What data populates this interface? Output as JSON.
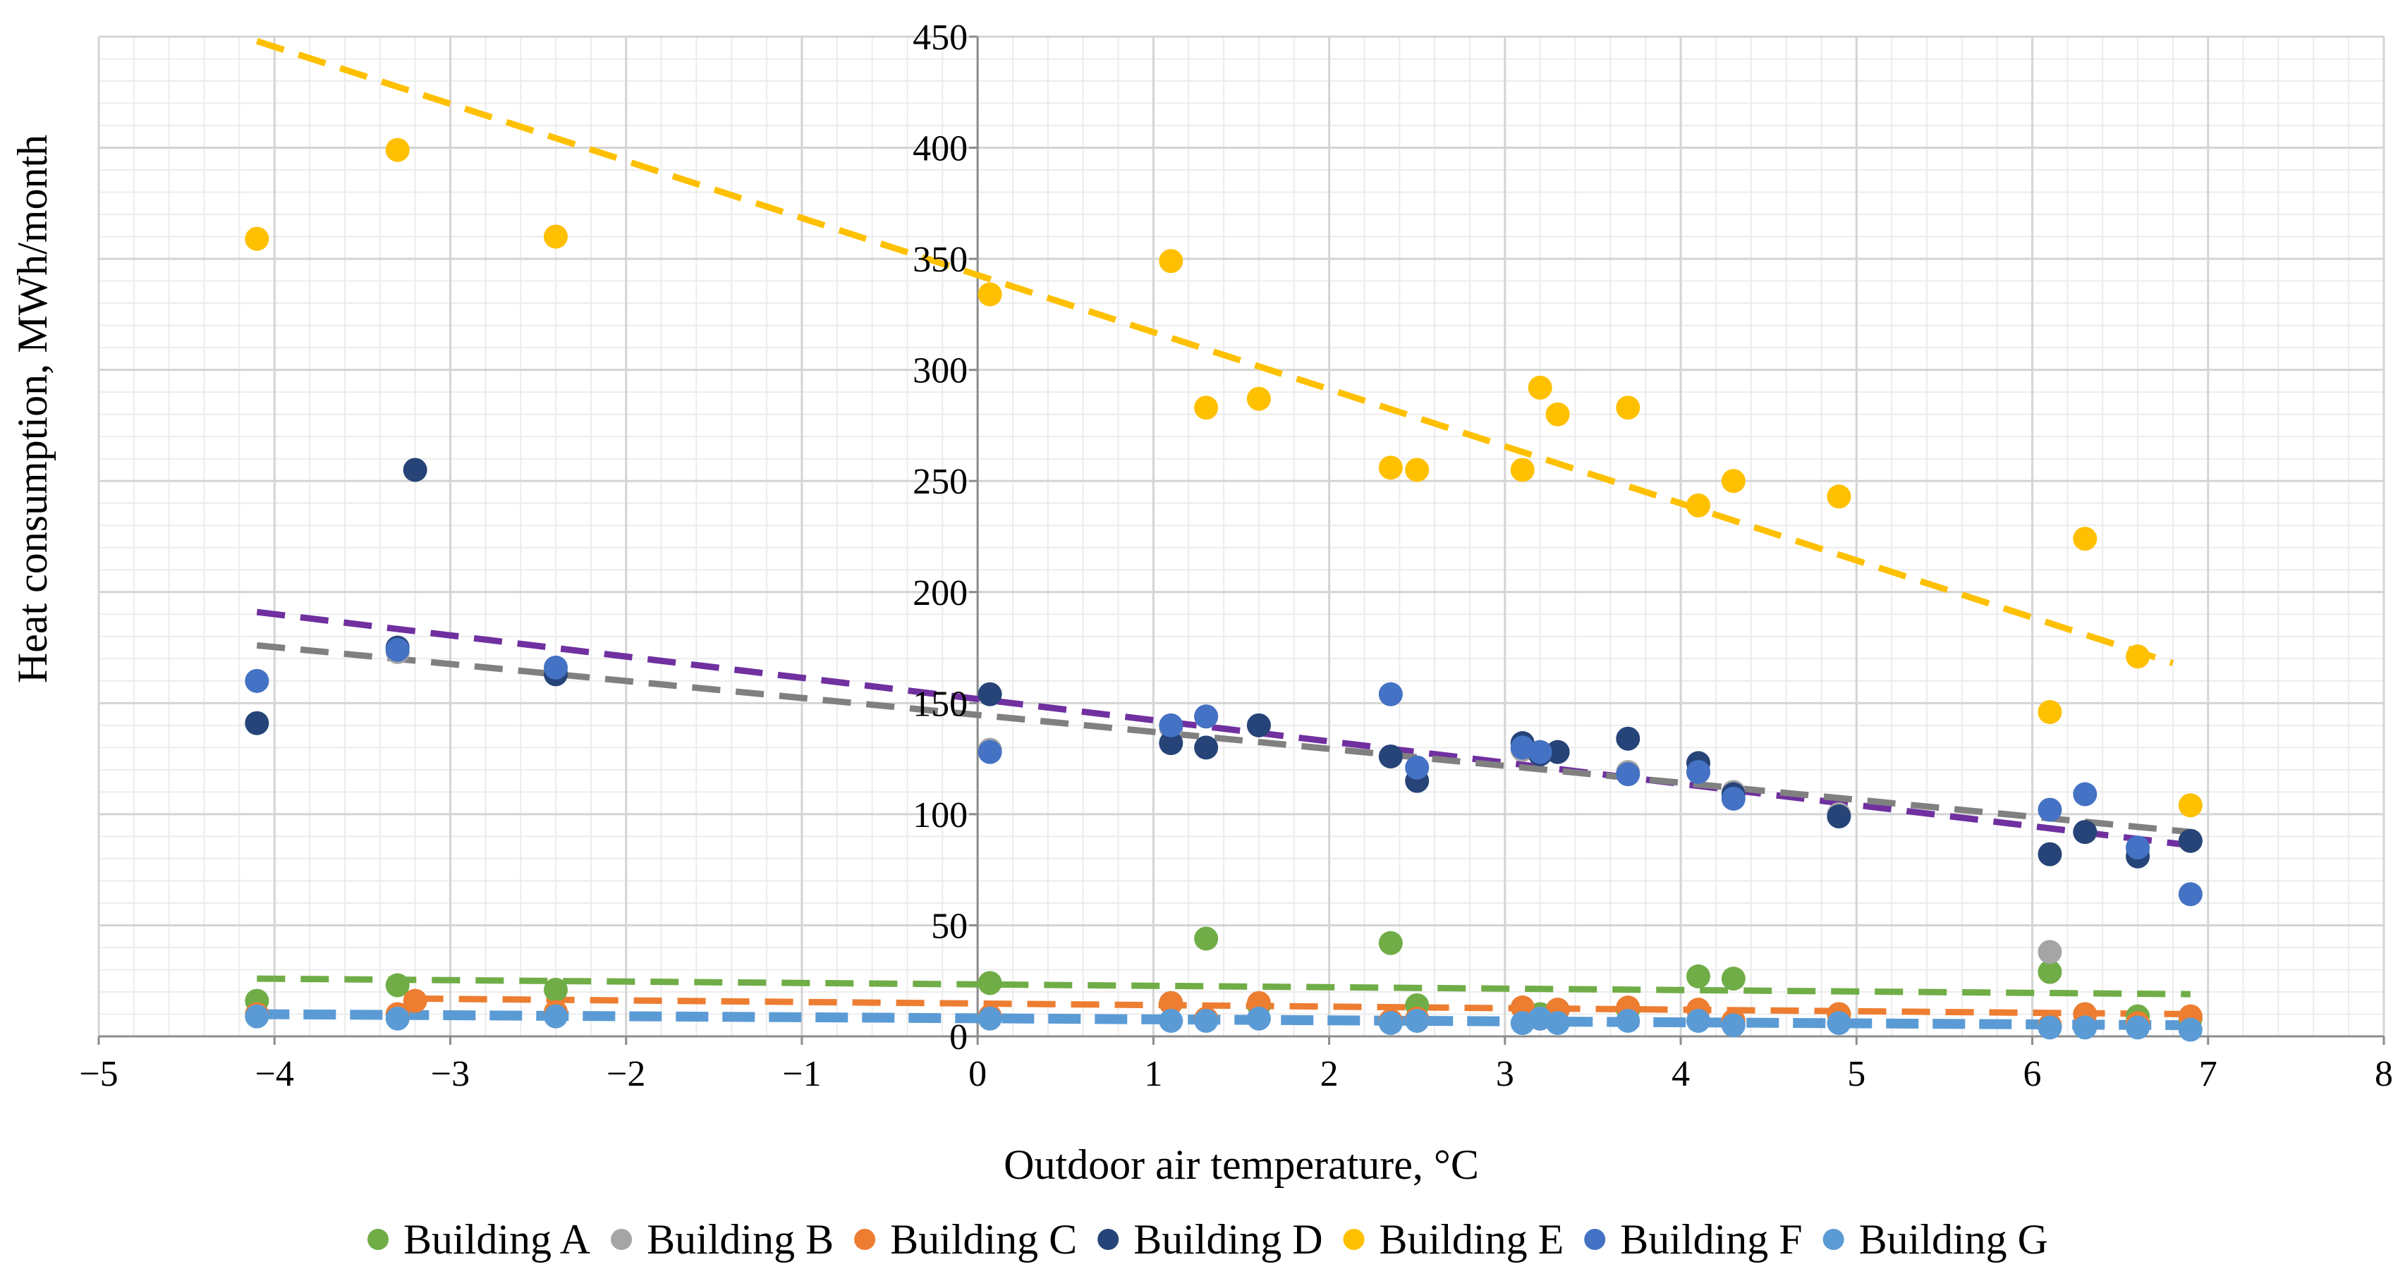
{
  "chart_data": {
    "type": "scatter",
    "xlabel": "Outdoor air temperature, °C",
    "ylabel": "Heat consumption, MWh/month",
    "xlim": [
      -5,
      8
    ],
    "ylim": [
      0,
      450
    ],
    "x_ticks": [
      -5,
      -4,
      -3,
      -2,
      -1,
      0,
      1,
      2,
      3,
      4,
      5,
      6,
      7,
      8
    ],
    "x_tick_labels": [
      "−5",
      "−4",
      "−3",
      "−2",
      "−1",
      "0",
      "1",
      "2",
      "3",
      "4",
      "5",
      "6",
      "7",
      "8"
    ],
    "y_ticks": [
      0,
      50,
      100,
      150,
      200,
      250,
      300,
      350,
      400,
      450
    ],
    "y_tick_labels": [
      "0",
      "50",
      "100",
      "150",
      "200",
      "250",
      "300",
      "350",
      "400",
      "450"
    ],
    "grid": true,
    "legend_position": "bottom",
    "series": [
      {
        "name": "Building A",
        "color": "#70AD47",
        "x": [
          -4.1,
          -3.3,
          -2.4,
          0.07,
          1.1,
          1.3,
          1.6,
          2.35,
          2.5,
          3.1,
          3.2,
          3.3,
          3.7,
          4.1,
          4.3,
          4.9,
          6.1,
          6.3,
          6.6,
          6.9
        ],
        "y": [
          16,
          23,
          21,
          24,
          15,
          44,
          14,
          42,
          14,
          13,
          10,
          12,
          12,
          27,
          26,
          10,
          29,
          10,
          9,
          8
        ]
      },
      {
        "name": "Building B",
        "color": "#A5A5A5",
        "x": [
          -4.1,
          -3.3,
          -2.4,
          0.07,
          1.1,
          1.3,
          1.6,
          2.35,
          2.5,
          3.1,
          3.2,
          3.3,
          3.7,
          4.1,
          4.3,
          4.9,
          6.1,
          6.3,
          6.6,
          6.9
        ],
        "y": [
          160,
          173,
          164,
          129,
          139,
          144,
          140,
          154,
          121,
          129,
          127,
          128,
          119,
          119,
          110,
          100,
          38,
          92,
          84,
          88
        ]
      },
      {
        "name": "Building C",
        "color": "#ED7D31",
        "x": [
          -4.1,
          -3.3,
          -3.2,
          -2.4,
          0.07,
          1.1,
          1.3,
          1.6,
          2.35,
          2.5,
          3.1,
          3.2,
          3.3,
          3.7,
          4.1,
          4.3,
          4.9,
          6.1,
          6.3,
          6.6,
          6.9
        ],
        "y": [
          10,
          10,
          16,
          11,
          9,
          15,
          8,
          15,
          7,
          8,
          13,
          8,
          12,
          13,
          12,
          7,
          10,
          5,
          10,
          6,
          9
        ]
      },
      {
        "name": "Building D",
        "color": "#264478",
        "x": [
          -4.1,
          -3.3,
          -3.2,
          -2.4,
          0.07,
          1.1,
          1.3,
          1.6,
          2.35,
          2.5,
          3.1,
          3.2,
          3.3,
          3.7,
          4.1,
          4.3,
          4.9,
          6.1,
          6.3,
          6.6,
          6.9
        ],
        "y": [
          141,
          175,
          255,
          163,
          154,
          132,
          130,
          140,
          126,
          115,
          132,
          127,
          128,
          134,
          123,
          109,
          99,
          82,
          92,
          81,
          88
        ]
      },
      {
        "name": "Building E",
        "color": "#FFC000",
        "x": [
          -4.1,
          -3.3,
          -2.4,
          0.07,
          1.1,
          1.3,
          1.6,
          2.35,
          2.5,
          3.1,
          3.2,
          3.3,
          3.7,
          4.1,
          4.3,
          4.9,
          6.1,
          6.3,
          6.6,
          6.9
        ],
        "y": [
          359,
          399,
          360,
          334,
          349,
          283,
          287,
          256,
          255,
          255,
          292,
          280,
          283,
          239,
          250,
          243,
          146,
          224,
          171,
          104
        ]
      },
      {
        "name": "Building F",
        "color": "#4472C4",
        "x": [
          -4.1,
          -3.3,
          -2.4,
          0.07,
          1.1,
          1.3,
          2.35,
          2.5,
          3.1,
          3.2,
          3.7,
          4.1,
          4.3,
          6.1,
          6.3,
          6.6,
          6.9
        ],
        "y": [
          160,
          174,
          166,
          128,
          140,
          144,
          154,
          121,
          130,
          128,
          118,
          119,
          107,
          102,
          109,
          85,
          64
        ]
      },
      {
        "name": "Building G",
        "color": "#5B9BD5",
        "x": [
          -4.1,
          -3.3,
          -2.4,
          0.07,
          1.1,
          1.3,
          1.6,
          2.35,
          2.5,
          3.1,
          3.2,
          3.3,
          3.7,
          4.1,
          4.3,
          4.9,
          6.1,
          6.3,
          6.6,
          6.9
        ],
        "y": [
          9,
          8,
          9,
          8,
          7,
          7,
          8,
          6,
          7,
          6,
          8,
          6,
          7,
          7,
          5,
          6,
          4,
          4,
          4,
          3
        ]
      }
    ],
    "trendlines": [
      {
        "series": "Building E",
        "color": "#FFC000",
        "x": [
          -4.1,
          6.8
        ],
        "y": [
          448,
          168
        ]
      },
      {
        "series": "Building F",
        "color": "#7030A0",
        "x": [
          -4.1,
          6.9
        ],
        "y": [
          191,
          86
        ]
      },
      {
        "series": "Building B",
        "color": "#808080",
        "x": [
          -4.1,
          6.9
        ],
        "y": [
          176,
          92
        ]
      },
      {
        "series": "Building A",
        "color": "#70AD47",
        "x": [
          -4.1,
          6.9
        ],
        "y": [
          26,
          19
        ]
      },
      {
        "series": "Building C",
        "color": "#ED7D31",
        "x": [
          -3.2,
          6.9
        ],
        "y": [
          17,
          10
        ]
      },
      {
        "series": "Building G",
        "color": "#5B9BD5",
        "x": [
          -4.1,
          6.9
        ],
        "y": [
          10,
          5
        ]
      }
    ]
  }
}
